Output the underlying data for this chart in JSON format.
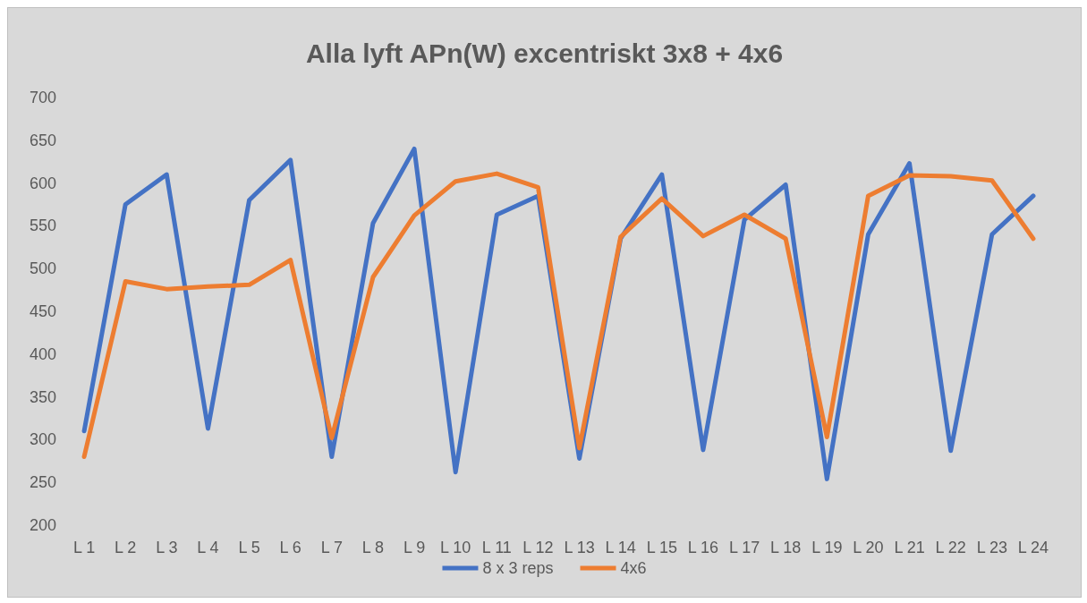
{
  "chart_data": {
    "type": "line",
    "title": "Alla lyft APn(W) excentriskt 3x8 + 4x6",
    "categories": [
      "L 1",
      "L 2",
      "L 3",
      "L 4",
      "L 5",
      "L 6",
      "L 7",
      "L 8",
      "L 9",
      "L 10",
      "L 11",
      "L 12",
      "L 13",
      "L 14",
      "L 15",
      "L 16",
      "L 17",
      "L 18",
      "L 19",
      "L 20",
      "L 21",
      "L 22",
      "L 23",
      "L 24"
    ],
    "series": [
      {
        "name": "8 x 3 reps",
        "color": "#4472c4",
        "values": [
          310,
          575,
          610,
          313,
          580,
          627,
          280,
          553,
          640,
          262,
          563,
          585,
          278,
          535,
          610,
          288,
          557,
          598,
          254,
          540,
          623,
          287,
          540,
          585
        ]
      },
      {
        "name": "4x6",
        "color": "#ed7d31",
        "values": [
          280,
          485,
          476,
          479,
          481,
          510,
          302,
          490,
          562,
          602,
          611,
          595,
          290,
          537,
          582,
          538,
          563,
          535,
          303,
          585,
          609,
          608,
          603,
          535
        ]
      }
    ],
    "ylim": [
      200,
      700
    ],
    "yticks": [
      200,
      250,
      300,
      350,
      400,
      450,
      500,
      550,
      600,
      650,
      700
    ],
    "grid": false,
    "legend": "bottom",
    "marker": "none",
    "line_style": "solid"
  }
}
